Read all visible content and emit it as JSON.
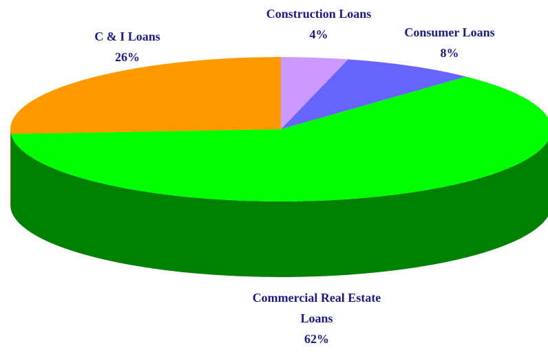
{
  "chart_data": {
    "type": "pie3d",
    "categories": [
      "Construction Loans",
      "Consumer Loans",
      "Commercial Real Estate Loans",
      "C & I Loans"
    ],
    "values": [
      4,
      8,
      62,
      26
    ],
    "value_labels": [
      "4%",
      "8%",
      "62%",
      "26%"
    ],
    "colors": [
      "#cc99ff",
      "#6666ff",
      "#00ff00",
      "#ff9900"
    ]
  }
}
